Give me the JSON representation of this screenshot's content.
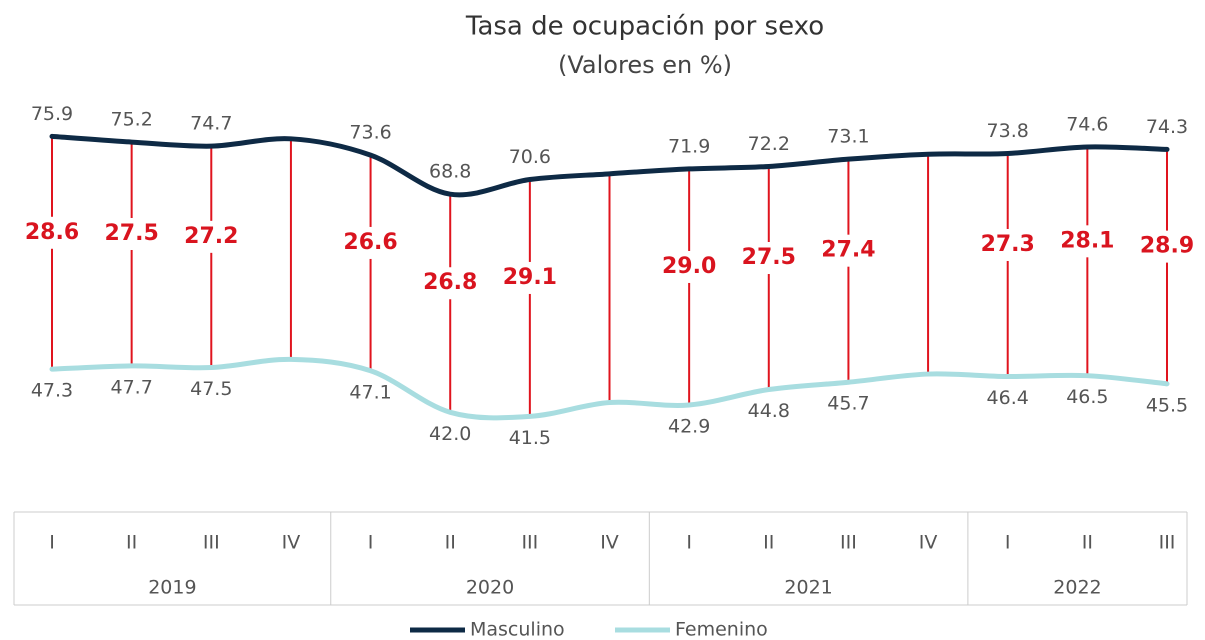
{
  "chart_data": {
    "type": "line",
    "title": "Tasa de ocupación por sexo",
    "subtitle": "(Valores en %)",
    "categories": [
      "I",
      "II",
      "III",
      "IV",
      "I",
      "II",
      "III",
      "IV",
      "I",
      "II",
      "III",
      "IV",
      "I",
      "II",
      "III"
    ],
    "years": [
      "2019",
      "2020",
      "2021",
      "2022"
    ],
    "series": [
      {
        "name": "Masculino",
        "color": "#0e2a45",
        "values": [
          75.9,
          75.2,
          74.7,
          75.6,
          73.6,
          68.8,
          70.6,
          71.3,
          71.9,
          72.2,
          73.1,
          73.7,
          73.8,
          74.6,
          74.3
        ],
        "value_labels": [
          "75.9",
          "75.2",
          "74.7",
          null,
          "73.6",
          "68.8",
          "70.6",
          null,
          "71.9",
          "72.2",
          "73.1",
          null,
          "73.8",
          "74.6",
          "74.3"
        ]
      },
      {
        "name": "Femenino",
        "color": "#a8dde0",
        "values": [
          47.3,
          47.7,
          47.5,
          48.5,
          47.1,
          42.0,
          41.5,
          43.2,
          42.9,
          44.8,
          45.7,
          46.7,
          46.4,
          46.5,
          45.5
        ],
        "value_labels": [
          "47.3",
          "47.7",
          "47.5",
          null,
          "47.1",
          "42.0",
          "41.5",
          null,
          "42.9",
          "44.8",
          "45.7",
          null,
          "46.4",
          "46.5",
          "45.5"
        ]
      }
    ],
    "gaps": [
      28.6,
      27.5,
      27.2,
      null,
      26.6,
      26.8,
      29.1,
      null,
      29.0,
      27.5,
      27.4,
      null,
      27.3,
      28.1,
      28.9
    ],
    "gap_labels": [
      "28.6",
      "27.5",
      "27.2",
      null,
      "26.6",
      "26.8",
      "29.1",
      null,
      "29.0",
      "27.5",
      "27.4",
      null,
      "27.3",
      "28.1",
      "28.9"
    ],
    "gap_color": "#e0141e",
    "ylim": [
      30,
      80
    ]
  }
}
